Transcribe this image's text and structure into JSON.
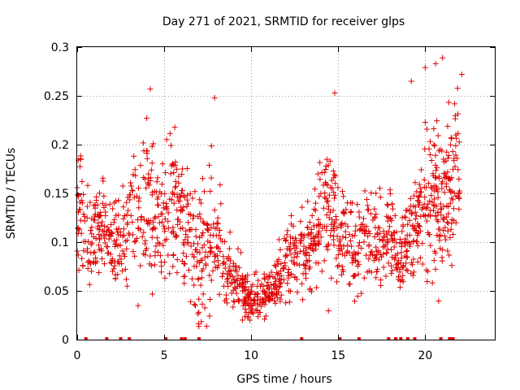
{
  "chart_data": {
    "type": "scatter",
    "title": "Day 271 of 2021, SRMTID for receiver glps",
    "xlabel": "GPS time / hours",
    "ylabel": "SRMTID / TECUs",
    "xlim": [
      0,
      24
    ],
    "ylim": [
      0,
      0.3
    ],
    "xticks": [
      0,
      5,
      10,
      15,
      20
    ],
    "yticks": [
      0,
      0.05,
      0.1,
      0.15,
      0.2,
      0.25,
      0.3
    ],
    "xtick_labels": [
      "0",
      "5",
      "10",
      "15",
      "20"
    ],
    "ytick_labels": [
      "0",
      "0.05",
      "0.1",
      "0.15",
      "0.2",
      "0.25",
      "0.3"
    ],
    "grid": true,
    "series_color": "#e00000",
    "marker": "plus",
    "envelope": {
      "x": [
        0,
        0.5,
        1,
        1.5,
        2,
        2.5,
        3,
        3.5,
        4,
        4.5,
        5,
        5.5,
        6,
        6.5,
        7,
        7.5,
        8,
        8.5,
        9,
        9.5,
        10,
        10.5,
        11,
        11.5,
        12,
        12.5,
        13,
        13.5,
        14,
        14.5,
        15,
        15.5,
        16,
        16.5,
        17,
        17.5,
        18,
        18.5,
        19,
        19.5,
        20,
        20.5,
        21,
        21.5,
        22
      ],
      "center": [
        0.14,
        0.1,
        0.11,
        0.13,
        0.09,
        0.1,
        0.13,
        0.12,
        0.14,
        0.13,
        0.12,
        0.14,
        0.13,
        0.1,
        0.09,
        0.09,
        0.11,
        0.07,
        0.06,
        0.05,
        0.04,
        0.045,
        0.05,
        0.06,
        0.08,
        0.08,
        0.09,
        0.1,
        0.12,
        0.14,
        0.11,
        0.1,
        0.09,
        0.12,
        0.11,
        0.1,
        0.11,
        0.09,
        0.1,
        0.12,
        0.15,
        0.15,
        0.14,
        0.16,
        0.18
      ],
      "spread": [
        0.04,
        0.03,
        0.03,
        0.03,
        0.03,
        0.03,
        0.04,
        0.04,
        0.05,
        0.04,
        0.04,
        0.05,
        0.04,
        0.04,
        0.05,
        0.05,
        0.05,
        0.03,
        0.02,
        0.02,
        0.015,
        0.015,
        0.015,
        0.02,
        0.025,
        0.03,
        0.03,
        0.03,
        0.04,
        0.05,
        0.04,
        0.03,
        0.03,
        0.03,
        0.03,
        0.03,
        0.03,
        0.03,
        0.03,
        0.04,
        0.05,
        0.06,
        0.05,
        0.06,
        0.04
      ]
    },
    "n_points": 1500,
    "outliers": [
      {
        "x": 4.2,
        "y": 0.257
      },
      {
        "x": 7.9,
        "y": 0.248
      },
      {
        "x": 14.8,
        "y": 0.253
      },
      {
        "x": 19.2,
        "y": 0.265
      },
      {
        "x": 20.0,
        "y": 0.279
      },
      {
        "x": 20.6,
        "y": 0.283
      },
      {
        "x": 21.0,
        "y": 0.289
      },
      {
        "x": 22.1,
        "y": 0.272
      }
    ],
    "baseline_markers": [
      0.5,
      1.7,
      2.5,
      3.0,
      5.1,
      6.0,
      6.2,
      7.0,
      12.9,
      15.1,
      16.2,
      17.9,
      18.3,
      18.6,
      19.0,
      19.4,
      20.9,
      21.4,
      21.5,
      21.6
    ]
  }
}
